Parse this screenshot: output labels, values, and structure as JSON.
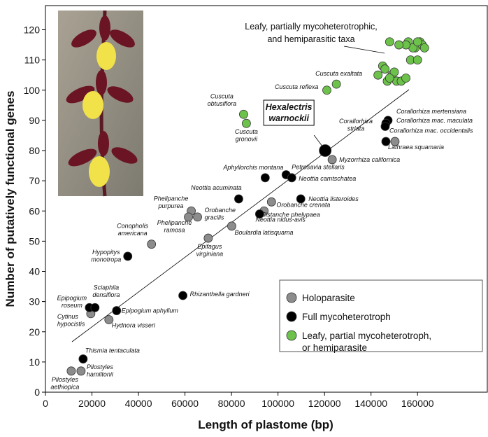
{
  "chart_data": {
    "type": "scatter",
    "xlabel": "Length of plastome (bp)",
    "ylabel": "Number of putatively functional genes",
    "xlim": [
      0,
      190000
    ],
    "ylim": [
      0,
      128
    ],
    "xticks": [
      0,
      20000,
      40000,
      60000,
      80000,
      100000,
      120000,
      140000,
      160000
    ],
    "yticks": [
      0,
      10,
      20,
      30,
      40,
      50,
      60,
      70,
      80,
      90,
      100,
      110,
      120
    ],
    "annotation": [
      "Leafy, partially mycoheterotrophic,",
      "and hemiparasitic taxa"
    ],
    "series": [
      {
        "name": "Holoparasite",
        "color": "#8c8c8c",
        "x": [
          11100,
          15300,
          19500,
          27300,
          45600,
          62700,
          61500,
          65400,
          70000,
          80100,
          94000,
          97200,
          123300,
          150300
        ],
        "y": [
          7,
          7,
          26,
          24,
          49,
          60,
          58,
          58,
          51,
          55,
          60,
          63,
          77,
          83
        ],
        "labels": [
          [
            "Pilostyles",
            "aethiopica"
          ],
          [
            "Pilostyles",
            "hamiltonii"
          ],
          [
            "Cytinus",
            "hypocistis"
          ],
          [
            "Hydnora visseri"
          ],
          [
            "Conopholis",
            "americana"
          ],
          [
            "Phelipanche",
            "purpurea"
          ],
          [
            "Phelipanche",
            "ramosa"
          ],
          [
            "Orobanche",
            "gracilis"
          ],
          [
            "Epifagus",
            "virginiana"
          ],
          [
            "Boulardia latisquama"
          ],
          [
            "Cistanche phelypaea"
          ],
          [
            "Orobanche crenata"
          ],
          [
            "Myzorrhiza californica"
          ],
          [
            "Lathraea squamaria"
          ]
        ]
      },
      {
        "name": "Full mycoheterotroph",
        "color": "#000000",
        "x": [
          16200,
          18900,
          21300,
          30600,
          35400,
          59100,
          83100,
          94500,
          92100,
          103500,
          105900,
          109800,
          120300,
          146400,
          147300,
          146400,
          146100
        ],
        "y": [
          11,
          28,
          28,
          27,
          45,
          32,
          64,
          71,
          59,
          72,
          71,
          64,
          80,
          83,
          90,
          89,
          88
        ],
        "labels": [
          [
            "Thismia tentaculata"
          ],
          [
            "Epipogium",
            "roseum"
          ],
          [
            "Sciaphila",
            "densiflora"
          ],
          [
            "Epipogium aphyllum"
          ],
          [
            "Hypopitys",
            "monotropa"
          ],
          [
            "Rhizanthella gardneri"
          ],
          [
            "Neottia acuminata"
          ],
          [
            "Aphyllorchis montana"
          ],
          [
            "Neottia nidus-avis"
          ],
          [
            "Petrosavia stellaris"
          ],
          [
            "Neottia camtschatea"
          ],
          [
            "Neottia listeroides"
          ],
          [
            "Hexalectris",
            "warnockii"
          ],
          [
            "Corallorhiza",
            "striata"
          ],
          [
            "Corallorhiza mertensiana"
          ],
          [
            "Corallorhiza mac. maculata"
          ],
          [
            "Corallorhiza mac. occidentalis"
          ]
        ]
      },
      {
        "name": "Leafy, partial mycoheterotroph, or hemiparasite",
        "color": "#6cc24a",
        "x": [
          85200,
          86400,
          121000,
          125100,
          143000,
          145000,
          147000,
          149000,
          151000,
          153000,
          150000,
          146000,
          148000,
          155000,
          157000,
          160000,
          159000,
          161000,
          156000,
          158000,
          162000,
          160000,
          163000,
          155000,
          152000,
          148000
        ],
        "y": [
          92,
          89,
          100,
          102,
          105,
          108,
          103,
          105,
          103,
          103,
          106,
          107,
          104,
          104,
          110,
          110,
          114,
          116,
          116,
          114,
          115,
          116,
          114,
          115,
          115,
          116
        ],
        "labels": [
          [
            "Cuscuta",
            "obtusiflora"
          ],
          [
            "Cuscuta",
            "gronovii"
          ],
          [
            "Cuscuta reflexa"
          ],
          [
            "Cuscuta exaltata"
          ],
          null,
          null,
          null,
          null,
          null,
          null,
          null,
          null,
          null,
          null,
          null,
          null,
          null,
          null,
          null,
          null,
          null,
          null,
          null,
          null,
          null,
          null
        ]
      }
    ]
  }
}
